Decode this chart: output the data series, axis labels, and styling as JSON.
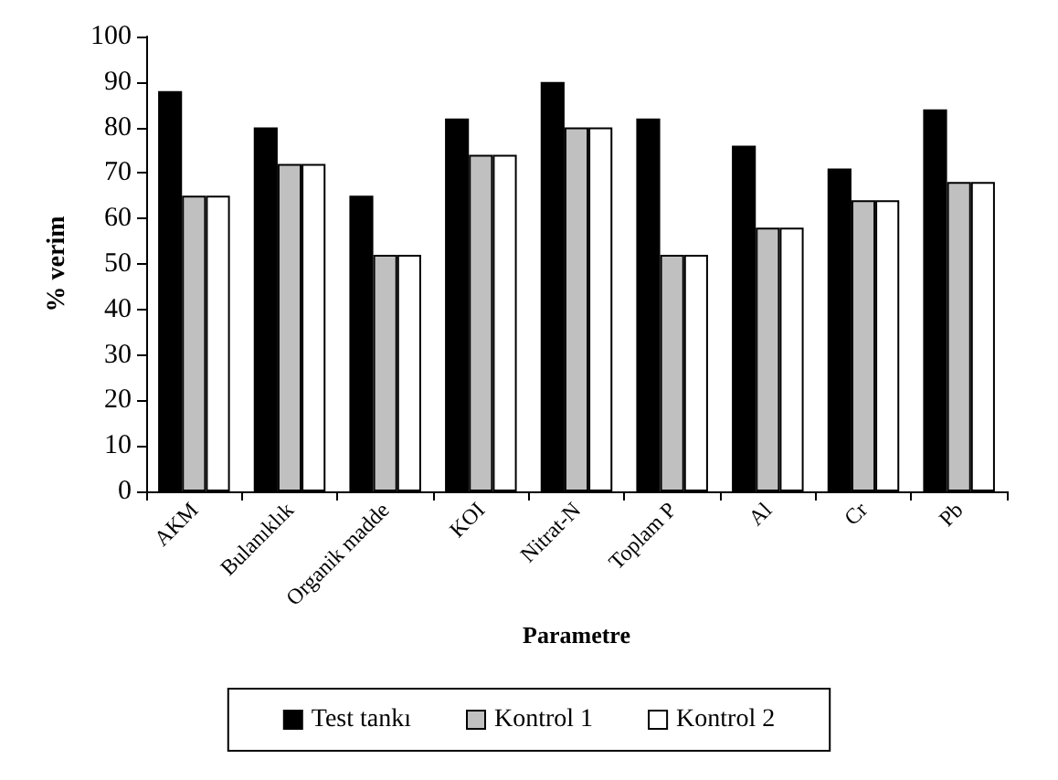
{
  "chart_data": {
    "type": "bar",
    "xlabel": "Parametre",
    "ylabel": "% verim",
    "categories": [
      "AKM",
      "Bulanıklık",
      "Organik madde",
      "KOI",
      "Nitrat-N",
      "Toplam P",
      "Al",
      "Cr",
      "Pb"
    ],
    "series": [
      {
        "name": "Test tankı",
        "color": "#000000",
        "values": [
          88,
          80,
          65,
          82,
          90,
          82,
          76,
          71,
          84
        ]
      },
      {
        "name": "Kontrol 1",
        "color": "#c0c0c0",
        "values": [
          65,
          72,
          52,
          74,
          80,
          52,
          58,
          64,
          68
        ]
      },
      {
        "name": "Kontrol 2",
        "color": "#ffffff",
        "values": [
          65,
          72,
          52,
          74,
          80,
          52,
          58,
          64,
          68
        ]
      }
    ],
    "ylim": [
      0,
      100
    ],
    "yticks": [
      0,
      10,
      20,
      30,
      40,
      50,
      60,
      70,
      80,
      90,
      100
    ],
    "grid": false,
    "legend": "bottom"
  }
}
